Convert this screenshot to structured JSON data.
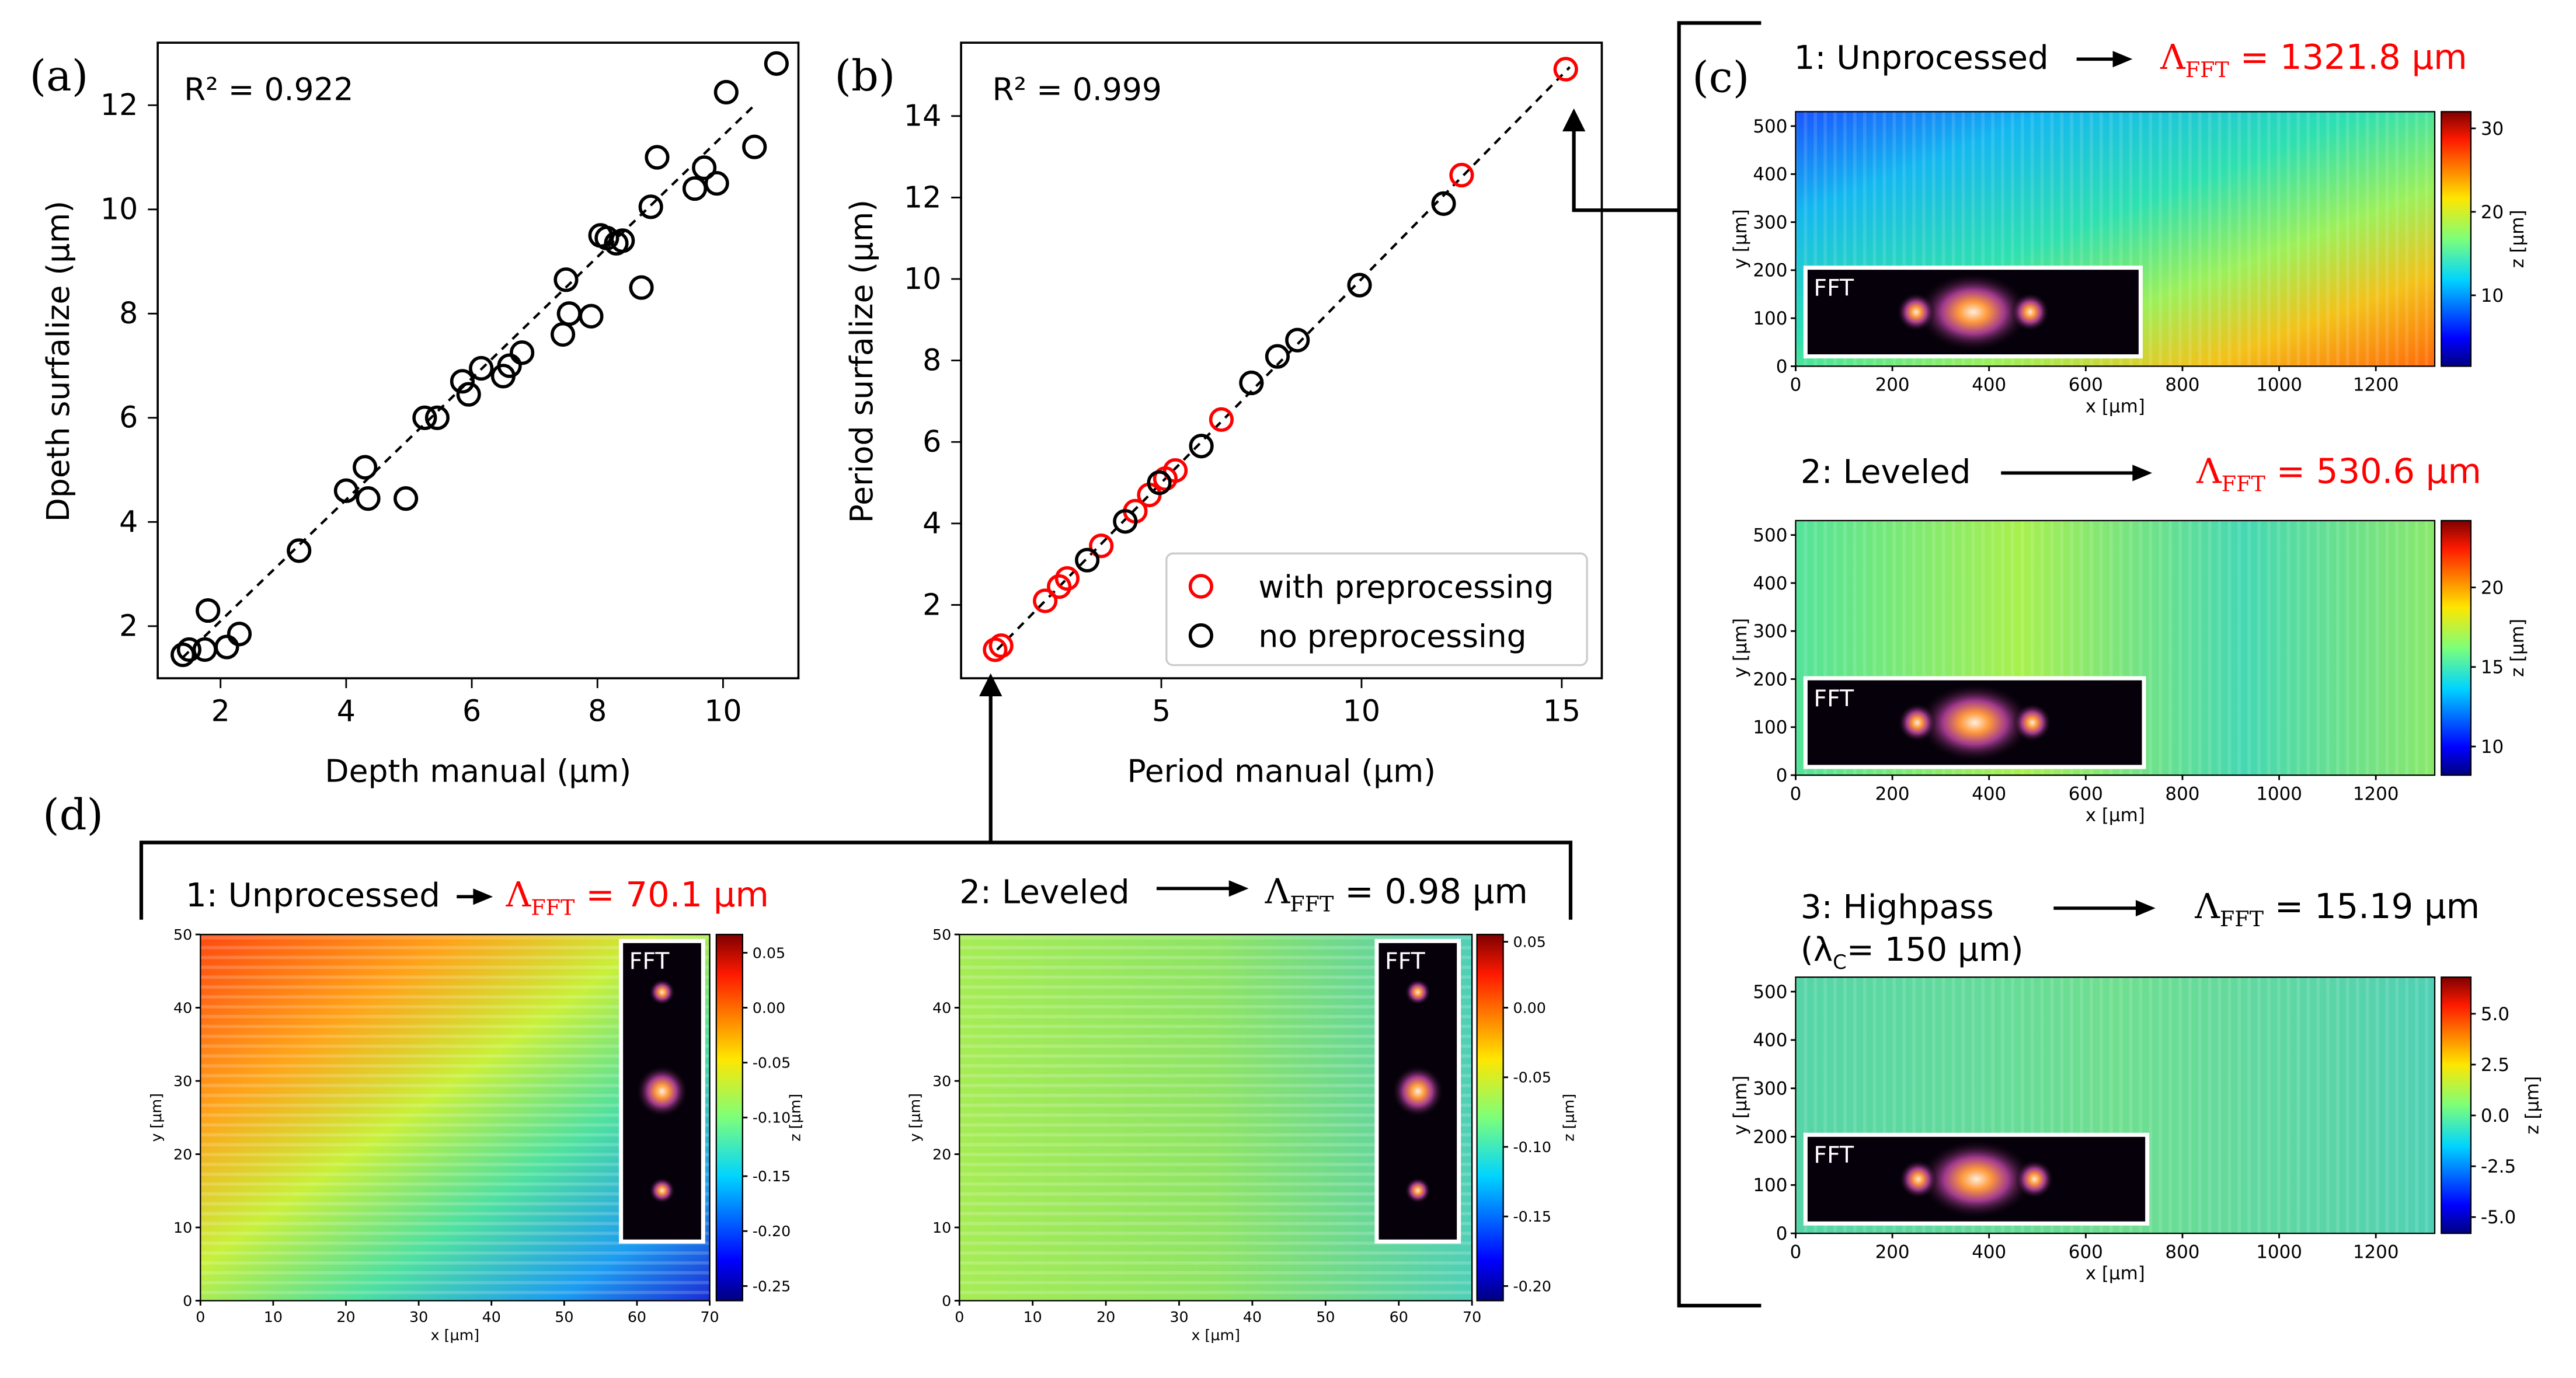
{
  "panel_labels": {
    "a": "(a)",
    "b": "(b)",
    "c": "(c)",
    "d": "(d)"
  },
  "colors": {
    "red": "#ff0000",
    "black": "#000000"
  },
  "fft_label": "FFT",
  "chart_data": [
    {
      "id": "a",
      "type": "scatter",
      "title": "",
      "xlabel": "Depth manual (μm)",
      "ylabel": "Dpeth surfalize (μm)",
      "annotation": "R² = 0.922",
      "xlim": [
        1.0,
        11.2
      ],
      "ylim": [
        1.0,
        13.2
      ],
      "xticks": [
        "2",
        "4",
        "6",
        "8",
        "10"
      ],
      "xtick_values": [
        2,
        4,
        6,
        8,
        10
      ],
      "yticks": [
        "2",
        "4",
        "6",
        "8",
        "10",
        "12"
      ],
      "ytick_values": [
        2,
        4,
        6,
        8,
        10,
        12
      ],
      "fit_line": [
        [
          1.4,
          1.4
        ],
        [
          10.5,
          12.0
        ]
      ],
      "series": [
        {
          "name": "points",
          "x": [
            1.4,
            1.5,
            1.75,
            1.8,
            2.1,
            2.3,
            3.25,
            4.0,
            4.3,
            4.35,
            4.95,
            5.25,
            5.45,
            5.85,
            5.95,
            6.15,
            6.5,
            6.6,
            6.8,
            7.45,
            7.5,
            7.55,
            7.55,
            7.9,
            8.05,
            8.15,
            8.3,
            8.4,
            8.7,
            8.85,
            8.95,
            9.55,
            9.7,
            9.9,
            10.05,
            10.5,
            10.85
          ],
          "y": [
            1.45,
            1.55,
            1.55,
            2.3,
            1.6,
            1.85,
            3.45,
            4.6,
            5.05,
            4.45,
            4.45,
            6.0,
            6.0,
            6.7,
            6.45,
            6.95,
            6.8,
            7.0,
            7.25,
            7.6,
            8.65,
            8.0,
            8.0,
            7.95,
            9.5,
            9.45,
            9.35,
            9.4,
            8.5,
            10.05,
            11.0,
            10.4,
            10.8,
            10.5,
            12.25,
            11.2,
            12.8
          ]
        }
      ]
    },
    {
      "id": "b",
      "type": "scatter",
      "title": "",
      "xlabel": "Period manual (μm)",
      "ylabel": "Period surfalize (μm)",
      "annotation": "R² = 0.999",
      "xlim": [
        0.0,
        16.0
      ],
      "ylim": [
        0.2,
        15.8
      ],
      "xticks": [
        "5",
        "10",
        "15"
      ],
      "xtick_values": [
        5,
        10,
        15
      ],
      "yticks": [
        "2",
        "4",
        "6",
        "8",
        "10",
        "12",
        "14"
      ],
      "ytick_values": [
        2,
        4,
        6,
        8,
        10,
        12,
        14
      ],
      "fit_line": [
        [
          0.9,
          0.9
        ],
        [
          15.2,
          15.2
        ]
      ],
      "legend": [
        "with preprocessing",
        "no preprocessing"
      ],
      "series": [
        {
          "name": "with preprocessing",
          "color": "#ff0000",
          "x": [
            0.85,
            1.0,
            2.1,
            2.45,
            2.65,
            3.5,
            4.35,
            4.7,
            5.1,
            5.35,
            6.5,
            12.5,
            15.1
          ],
          "y": [
            0.9,
            1.0,
            2.1,
            2.45,
            2.65,
            3.45,
            4.3,
            4.7,
            5.1,
            5.3,
            6.55,
            12.55,
            15.15
          ]
        },
        {
          "name": "no preprocessing",
          "color": "#000000",
          "x": [
            3.15,
            4.1,
            4.95,
            6.0,
            7.25,
            7.9,
            8.4,
            9.95,
            12.05
          ],
          "y": [
            3.1,
            4.05,
            5.0,
            5.9,
            7.45,
            8.1,
            8.5,
            9.85,
            11.85
          ]
        }
      ]
    },
    {
      "id": "c1",
      "type": "heatmap",
      "title": "1: Unprocessed",
      "result_label": "Λ",
      "result_sub": "FFT",
      "result_value": " = 1321.8 μm",
      "result_color": "#ff0000",
      "xlabel": "x [μm]",
      "ylabel": "y [μm]",
      "colorbar_label": "z [μm]",
      "xticks": [
        "0",
        "200",
        "400",
        "600",
        "800",
        "1000",
        "1200"
      ],
      "yticks": [
        "0",
        "100",
        "200",
        "300",
        "400",
        "500"
      ],
      "cbar_ticks": [
        "10",
        "20",
        "30"
      ]
    },
    {
      "id": "c2",
      "type": "heatmap",
      "title": "2: Leveled",
      "result_label": "Λ",
      "result_sub": "FFT",
      "result_value": " = 530.6 μm",
      "result_color": "#ff0000",
      "xlabel": "x [μm]",
      "ylabel": "y [μm]",
      "colorbar_label": "z [μm]",
      "xticks": [
        "0",
        "200",
        "400",
        "600",
        "800",
        "1000",
        "1200"
      ],
      "yticks": [
        "0",
        "100",
        "200",
        "300",
        "400",
        "500"
      ],
      "cbar_ticks": [
        "10",
        "15",
        "20"
      ]
    },
    {
      "id": "c3",
      "type": "heatmap",
      "title": "3: Highpass",
      "title_line2_a": "(λ",
      "title_line2_sub": "C",
      "title_line2_b": "= 150 μm)",
      "result_label": "Λ",
      "result_sub": "FFT",
      "result_value": " = 15.19 μm",
      "result_color": "#000000",
      "xlabel": "x [μm]",
      "ylabel": "y [μm]",
      "colorbar_label": "z [μm]",
      "xticks": [
        "0",
        "200",
        "400",
        "600",
        "800",
        "1000",
        "1200"
      ],
      "yticks": [
        "0",
        "100",
        "200",
        "300",
        "400",
        "500"
      ],
      "cbar_ticks": [
        "-5.0",
        "-2.5",
        "0.0",
        "2.5",
        "5.0"
      ]
    },
    {
      "id": "d1",
      "type": "heatmap",
      "title": "1: Unprocessed",
      "result_label": "Λ",
      "result_sub": "FFT",
      "result_value": " = 70.1 μm",
      "result_color": "#ff0000",
      "xlabel": "x [μm]",
      "ylabel": "y [μm]",
      "colorbar_label": "z [μm]",
      "xticks": [
        "0",
        "10",
        "20",
        "30",
        "40",
        "50",
        "60",
        "70"
      ],
      "yticks": [
        "0",
        "10",
        "20",
        "30",
        "40",
        "50"
      ],
      "cbar_ticks": [
        "-0.25",
        "-0.20",
        "-0.15",
        "-0.10",
        "-0.05",
        "0.00",
        "0.05"
      ]
    },
    {
      "id": "d2",
      "type": "heatmap",
      "title": "2: Leveled",
      "result_label": "Λ",
      "result_sub": "FFT",
      "result_value": " = 0.98 μm",
      "result_color": "#000000",
      "xlabel": "x [μm]",
      "ylabel": "y [μm]",
      "colorbar_label": "z [μm]",
      "xticks": [
        "0",
        "10",
        "20",
        "30",
        "40",
        "50",
        "60",
        "70"
      ],
      "yticks": [
        "0",
        "10",
        "20",
        "30",
        "40",
        "50"
      ],
      "cbar_ticks": [
        "-0.20",
        "-0.15",
        "-0.10",
        "-0.05",
        "0.00",
        "0.05"
      ]
    }
  ]
}
